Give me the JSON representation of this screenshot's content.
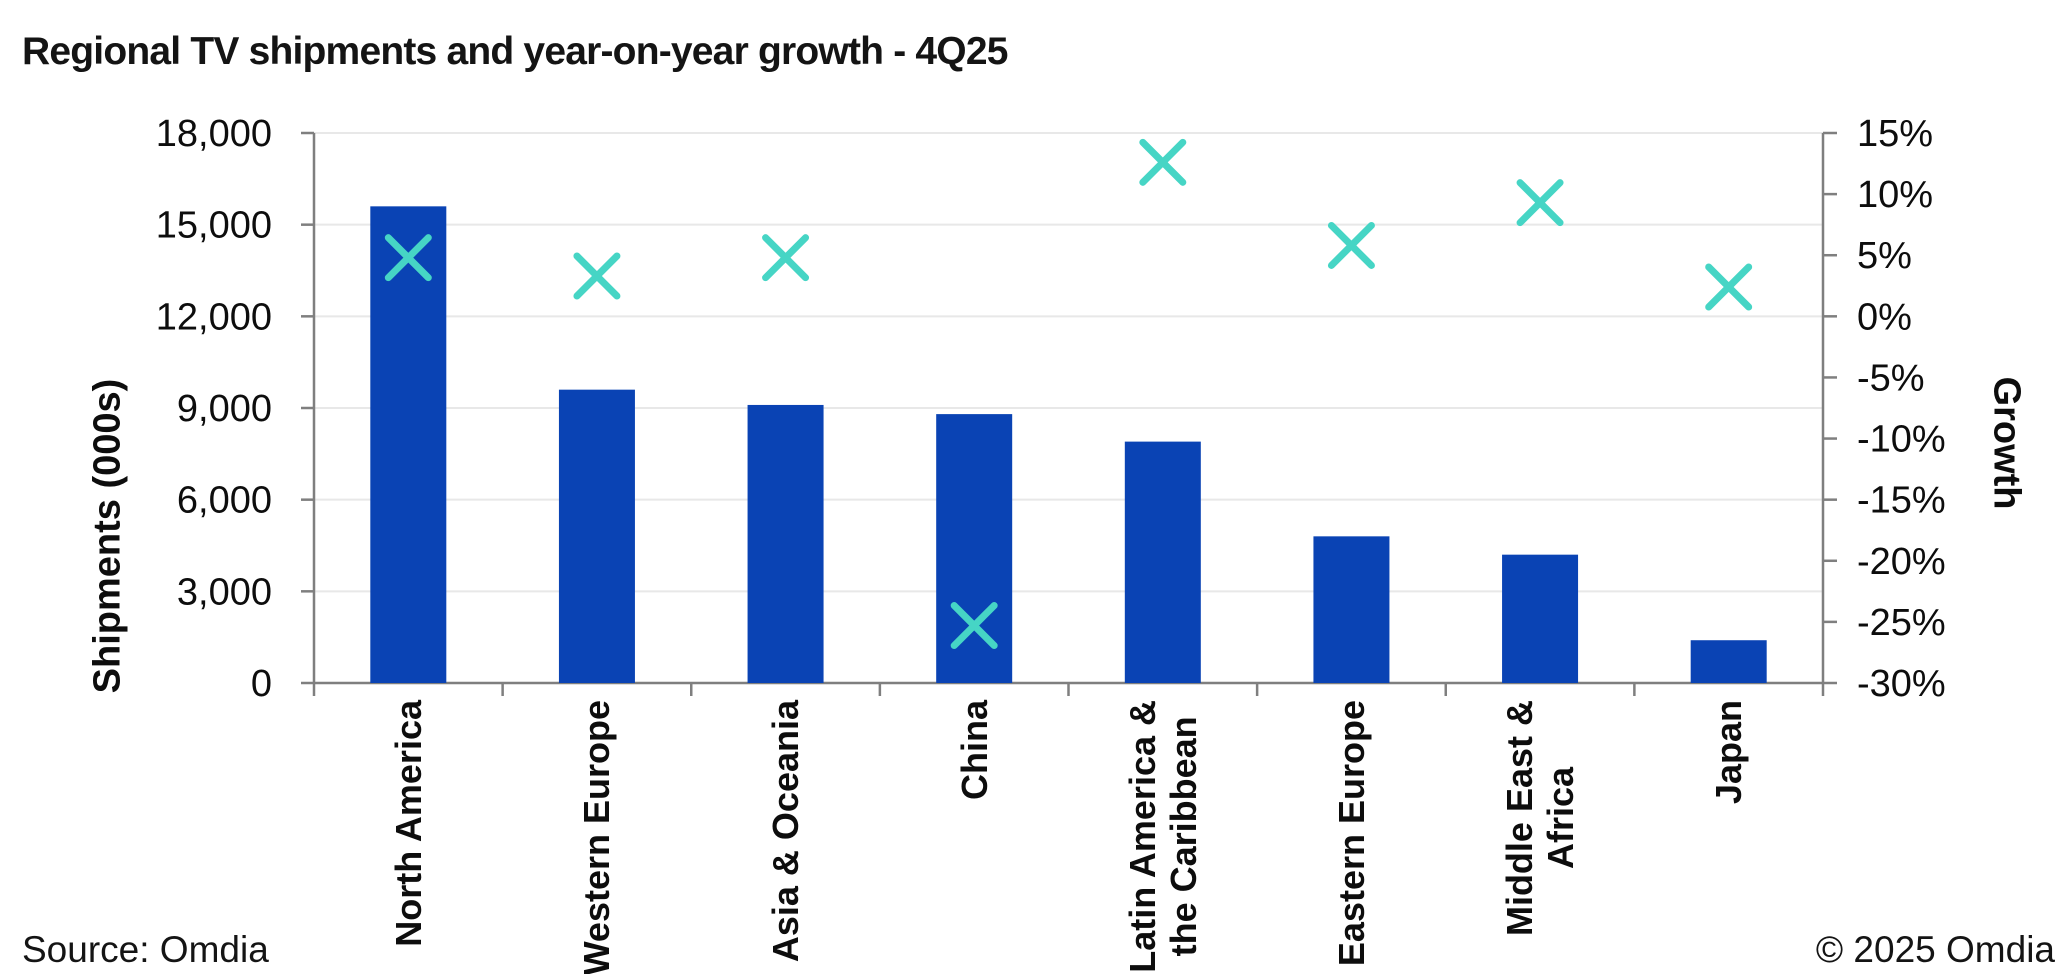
{
  "title": "Regional TV shipments and year-on-year growth - 4Q25",
  "footer": {
    "source": "Source: Omdia",
    "copyright": "© 2025 Omdia"
  },
  "style": {
    "bar_color": "#0a43b4",
    "marker_color": "#46d5c5",
    "grid_color": "#e8e8e8",
    "axis_color": "#7f7f7f",
    "text_color": "#0d0d0d",
    "background": "#ffffff"
  },
  "chart_data": {
    "type": "combo bar + scatter",
    "title": "Regional TV shipments and year-on-year growth - 4Q25",
    "categories": [
      "North America",
      "Western Europe",
      "Asia & Oceania",
      "China",
      "Latin America & the Caribbean",
      "Eastern Europe",
      "Middle East & Africa",
      "Japan"
    ],
    "category_label_lines": [
      [
        "North America"
      ],
      [
        "Western Europe"
      ],
      [
        "Asia & Oceania"
      ],
      [
        "China"
      ],
      [
        "Latin America &",
        "the Caribbean"
      ],
      [
        "Eastern Europe"
      ],
      [
        "Middle East &",
        "Africa"
      ],
      [
        "Japan"
      ]
    ],
    "series": [
      {
        "name": "Shipments (000s)",
        "type": "bar",
        "axis": "left",
        "values": [
          15600,
          9600,
          9100,
          8800,
          7900,
          4800,
          4200,
          1400
        ]
      },
      {
        "name": "Growth",
        "type": "scatter",
        "marker": "x",
        "axis": "right",
        "values": [
          4.8,
          3.3,
          4.8,
          -25.3,
          12.6,
          5.8,
          9.3,
          2.4
        ]
      }
    ],
    "left_axis": {
      "title": "Shipments (000s)",
      "min": 0,
      "max": 18000,
      "step": 3000,
      "ticks": [
        {
          "value": 18000,
          "label": "18,000"
        },
        {
          "value": 15000,
          "label": "15,000"
        },
        {
          "value": 12000,
          "label": "12,000"
        },
        {
          "value": 9000,
          "label": "9,000"
        },
        {
          "value": 6000,
          "label": "6,000"
        },
        {
          "value": 3000,
          "label": "3,000"
        },
        {
          "value": 0,
          "label": "0"
        }
      ]
    },
    "right_axis": {
      "title": "Growth",
      "min": -30,
      "max": 15,
      "step": 5,
      "ticks": [
        {
          "value": 15,
          "label": "15%"
        },
        {
          "value": 10,
          "label": "10%"
        },
        {
          "value": 5,
          "label": "5%"
        },
        {
          "value": 0,
          "label": "0%"
        },
        {
          "value": -5,
          "label": "-5%"
        },
        {
          "value": -10,
          "label": "-10%"
        },
        {
          "value": -15,
          "label": "-15%"
        },
        {
          "value": -20,
          "label": "-20%"
        },
        {
          "value": -25,
          "label": "-25%"
        },
        {
          "value": -30,
          "label": "-30%"
        }
      ]
    },
    "grid": {
      "horizontal": true,
      "vertical": false
    },
    "legend": "none"
  }
}
